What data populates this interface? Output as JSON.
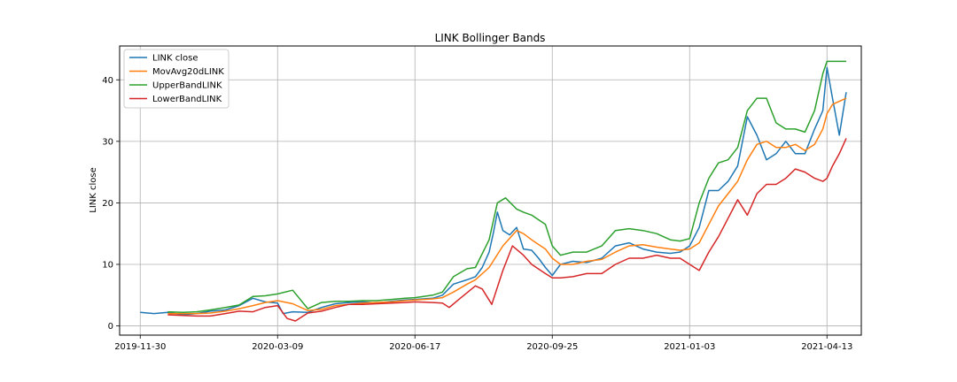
{
  "chart_data": {
    "type": "line",
    "title": "LINK Bollinger Bands",
    "xlabel": "",
    "ylabel": "LINK close",
    "ylim": [
      -1.5,
      45.5
    ],
    "yticks": [
      0,
      10,
      20,
      30,
      40
    ],
    "xticks": [
      "2019-11-30",
      "2020-03-09",
      "2020-06-17",
      "2020-09-25",
      "2021-01-03",
      "2021-04-13"
    ],
    "x_range": [
      "2019-11-15",
      "2021-05-08"
    ],
    "grid": true,
    "legend": "top-left",
    "series": [
      {
        "name": "LINK close",
        "color": "#1f77b4",
        "points": [
          [
            "2019-11-30",
            2.2
          ],
          [
            "2019-12-10",
            2.0
          ],
          [
            "2019-12-20",
            2.2
          ],
          [
            "2019-12-31",
            1.8
          ],
          [
            "2020-01-10",
            2.0
          ],
          [
            "2020-01-20",
            2.4
          ],
          [
            "2020-01-31",
            2.6
          ],
          [
            "2020-02-10",
            3.3
          ],
          [
            "2020-02-20",
            4.5
          ],
          [
            "2020-02-29",
            3.9
          ],
          [
            "2020-03-09",
            3.7
          ],
          [
            "2020-03-13",
            2.0
          ],
          [
            "2020-03-20",
            2.3
          ],
          [
            "2020-03-31",
            2.2
          ],
          [
            "2020-04-10",
            3.0
          ],
          [
            "2020-04-20",
            3.6
          ],
          [
            "2020-04-30",
            3.8
          ],
          [
            "2020-05-10",
            3.9
          ],
          [
            "2020-05-20",
            3.7
          ],
          [
            "2020-05-31",
            4.0
          ],
          [
            "2020-06-10",
            4.2
          ],
          [
            "2020-06-17",
            4.3
          ],
          [
            "2020-06-30",
            4.5
          ],
          [
            "2020-07-07",
            5.0
          ],
          [
            "2020-07-15",
            6.8
          ],
          [
            "2020-07-25",
            7.5
          ],
          [
            "2020-07-31",
            8.0
          ],
          [
            "2020-08-05",
            9.5
          ],
          [
            "2020-08-10",
            12.0
          ],
          [
            "2020-08-13",
            15.0
          ],
          [
            "2020-08-16",
            18.5
          ],
          [
            "2020-08-20",
            15.5
          ],
          [
            "2020-08-25",
            14.8
          ],
          [
            "2020-08-30",
            16.0
          ],
          [
            "2020-09-04",
            12.5
          ],
          [
            "2020-09-10",
            12.3
          ],
          [
            "2020-09-15",
            11.0
          ],
          [
            "2020-09-20",
            9.5
          ],
          [
            "2020-09-25",
            8.2
          ],
          [
            "2020-10-01",
            10.0
          ],
          [
            "2020-10-10",
            10.5
          ],
          [
            "2020-10-20",
            10.3
          ],
          [
            "2020-10-31",
            11.0
          ],
          [
            "2020-11-10",
            13.0
          ],
          [
            "2020-11-20",
            13.5
          ],
          [
            "2020-11-30",
            12.5
          ],
          [
            "2020-12-10",
            12.0
          ],
          [
            "2020-12-20",
            11.8
          ],
          [
            "2020-12-27",
            12.0
          ],
          [
            "2021-01-03",
            13.0
          ],
          [
            "2021-01-10",
            16.0
          ],
          [
            "2021-01-17",
            22.0
          ],
          [
            "2021-01-24",
            22.0
          ],
          [
            "2021-01-31",
            23.5
          ],
          [
            "2021-02-07",
            26.0
          ],
          [
            "2021-02-14",
            34.0
          ],
          [
            "2021-02-21",
            31.0
          ],
          [
            "2021-02-28",
            27.0
          ],
          [
            "2021-03-07",
            28.0
          ],
          [
            "2021-03-14",
            30.0
          ],
          [
            "2021-03-21",
            28.0
          ],
          [
            "2021-03-28",
            28.0
          ],
          [
            "2021-04-04",
            32.0
          ],
          [
            "2021-04-10",
            35.0
          ],
          [
            "2021-04-13",
            42.0
          ],
          [
            "2021-04-17",
            37.0
          ],
          [
            "2021-04-22",
            31.0
          ],
          [
            "2021-04-27",
            38.0
          ]
        ]
      },
      {
        "name": "MovAvg20dLINK",
        "color": "#ff7f0e",
        "points": [
          [
            "2019-12-20",
            2.0
          ],
          [
            "2019-12-31",
            2.0
          ],
          [
            "2020-01-10",
            2.0
          ],
          [
            "2020-01-20",
            2.1
          ],
          [
            "2020-01-31",
            2.4
          ],
          [
            "2020-02-10",
            2.8
          ],
          [
            "2020-02-20",
            3.3
          ],
          [
            "2020-02-29",
            3.8
          ],
          [
            "2020-03-09",
            4.1
          ],
          [
            "2020-03-20",
            3.6
          ],
          [
            "2020-03-31",
            2.5
          ],
          [
            "2020-04-10",
            2.7
          ],
          [
            "2020-04-20",
            3.3
          ],
          [
            "2020-04-30",
            3.5
          ],
          [
            "2020-05-10",
            3.7
          ],
          [
            "2020-05-20",
            3.8
          ],
          [
            "2020-05-31",
            3.9
          ],
          [
            "2020-06-10",
            4.1
          ],
          [
            "2020-06-17",
            4.2
          ],
          [
            "2020-06-30",
            4.4
          ],
          [
            "2020-07-07",
            4.6
          ],
          [
            "2020-07-15",
            5.5
          ],
          [
            "2020-07-25",
            6.8
          ],
          [
            "2020-07-31",
            7.5
          ],
          [
            "2020-08-10",
            9.5
          ],
          [
            "2020-08-20",
            13.0
          ],
          [
            "2020-08-30",
            15.5
          ],
          [
            "2020-09-04",
            15.0
          ],
          [
            "2020-09-10",
            14.0
          ],
          [
            "2020-09-20",
            12.5
          ],
          [
            "2020-09-25",
            11.0
          ],
          [
            "2020-10-01",
            10.0
          ],
          [
            "2020-10-10",
            10.0
          ],
          [
            "2020-10-20",
            10.5
          ],
          [
            "2020-10-31",
            10.8
          ],
          [
            "2020-11-10",
            12.0
          ],
          [
            "2020-11-20",
            13.0
          ],
          [
            "2020-11-30",
            13.2
          ],
          [
            "2020-12-10",
            12.8
          ],
          [
            "2020-12-20",
            12.5
          ],
          [
            "2020-12-27",
            12.3
          ],
          [
            "2021-01-03",
            12.5
          ],
          [
            "2021-01-10",
            13.5
          ],
          [
            "2021-01-17",
            16.5
          ],
          [
            "2021-01-24",
            19.5
          ],
          [
            "2021-01-31",
            21.5
          ],
          [
            "2021-02-07",
            23.5
          ],
          [
            "2021-02-14",
            27.0
          ],
          [
            "2021-02-21",
            29.5
          ],
          [
            "2021-02-28",
            30.0
          ],
          [
            "2021-03-07",
            29.0
          ],
          [
            "2021-03-14",
            29.0
          ],
          [
            "2021-03-21",
            29.5
          ],
          [
            "2021-03-28",
            28.5
          ],
          [
            "2021-04-04",
            29.5
          ],
          [
            "2021-04-10",
            32.0
          ],
          [
            "2021-04-13",
            34.5
          ],
          [
            "2021-04-17",
            36.0
          ],
          [
            "2021-04-22",
            36.5
          ],
          [
            "2021-04-27",
            37.0
          ]
        ]
      },
      {
        "name": "UpperBandLINK",
        "color": "#2ca02c",
        "points": [
          [
            "2019-12-20",
            2.3
          ],
          [
            "2019-12-31",
            2.2
          ],
          [
            "2020-01-10",
            2.3
          ],
          [
            "2020-01-20",
            2.6
          ],
          [
            "2020-01-31",
            3.0
          ],
          [
            "2020-02-10",
            3.4
          ],
          [
            "2020-02-20",
            4.8
          ],
          [
            "2020-02-29",
            4.9
          ],
          [
            "2020-03-09",
            5.2
          ],
          [
            "2020-03-20",
            5.8
          ],
          [
            "2020-03-31",
            2.8
          ],
          [
            "2020-04-10",
            3.8
          ],
          [
            "2020-04-20",
            4.0
          ],
          [
            "2020-04-30",
            4.0
          ],
          [
            "2020-05-10",
            4.1
          ],
          [
            "2020-05-20",
            4.1
          ],
          [
            "2020-05-31",
            4.3
          ],
          [
            "2020-06-10",
            4.5
          ],
          [
            "2020-06-17",
            4.6
          ],
          [
            "2020-06-30",
            5.0
          ],
          [
            "2020-07-07",
            5.5
          ],
          [
            "2020-07-15",
            8.0
          ],
          [
            "2020-07-25",
            9.3
          ],
          [
            "2020-07-31",
            9.5
          ],
          [
            "2020-08-10",
            14.0
          ],
          [
            "2020-08-16",
            20.0
          ],
          [
            "2020-08-22",
            20.8
          ],
          [
            "2020-08-30",
            19.0
          ],
          [
            "2020-09-04",
            18.5
          ],
          [
            "2020-09-10",
            18.0
          ],
          [
            "2020-09-20",
            16.5
          ],
          [
            "2020-09-25",
            13.0
          ],
          [
            "2020-10-01",
            11.5
          ],
          [
            "2020-10-10",
            12.0
          ],
          [
            "2020-10-20",
            12.0
          ],
          [
            "2020-10-31",
            13.0
          ],
          [
            "2020-11-10",
            15.5
          ],
          [
            "2020-11-20",
            15.8
          ],
          [
            "2020-11-30",
            15.5
          ],
          [
            "2020-12-10",
            15.0
          ],
          [
            "2020-12-20",
            14.0
          ],
          [
            "2020-12-27",
            13.8
          ],
          [
            "2021-01-03",
            14.2
          ],
          [
            "2021-01-10",
            20.0
          ],
          [
            "2021-01-17",
            24.0
          ],
          [
            "2021-01-24",
            26.5
          ],
          [
            "2021-01-31",
            27.0
          ],
          [
            "2021-02-07",
            29.0
          ],
          [
            "2021-02-14",
            35.0
          ],
          [
            "2021-02-21",
            37.0
          ],
          [
            "2021-02-28",
            37.0
          ],
          [
            "2021-03-07",
            33.0
          ],
          [
            "2021-03-14",
            32.0
          ],
          [
            "2021-03-21",
            32.0
          ],
          [
            "2021-03-28",
            31.5
          ],
          [
            "2021-04-04",
            35.0
          ],
          [
            "2021-04-10",
            41.0
          ],
          [
            "2021-04-13",
            43.0
          ],
          [
            "2021-04-17",
            43.0
          ],
          [
            "2021-04-27",
            43.0
          ]
        ]
      },
      {
        "name": "LowerBandLINK",
        "color": "#d62728",
        "points": [
          [
            "2019-12-20",
            1.8
          ],
          [
            "2019-12-31",
            1.7
          ],
          [
            "2020-01-10",
            1.6
          ],
          [
            "2020-01-20",
            1.6
          ],
          [
            "2020-01-31",
            2.0
          ],
          [
            "2020-02-10",
            2.4
          ],
          [
            "2020-02-20",
            2.3
          ],
          [
            "2020-02-29",
            3.0
          ],
          [
            "2020-03-09",
            3.3
          ],
          [
            "2020-03-16",
            1.2
          ],
          [
            "2020-03-22",
            0.8
          ],
          [
            "2020-03-31",
            2.1
          ],
          [
            "2020-04-10",
            2.4
          ],
          [
            "2020-04-20",
            3.0
          ],
          [
            "2020-04-30",
            3.5
          ],
          [
            "2020-05-10",
            3.5
          ],
          [
            "2020-05-20",
            3.6
          ],
          [
            "2020-05-31",
            3.7
          ],
          [
            "2020-06-10",
            3.8
          ],
          [
            "2020-06-17",
            3.9
          ],
          [
            "2020-06-30",
            3.8
          ],
          [
            "2020-07-07",
            3.7
          ],
          [
            "2020-07-12",
            3.0
          ],
          [
            "2020-07-20",
            4.5
          ],
          [
            "2020-07-31",
            6.5
          ],
          [
            "2020-08-05",
            6.0
          ],
          [
            "2020-08-12",
            3.5
          ],
          [
            "2020-08-20",
            9.0
          ],
          [
            "2020-08-27",
            13.0
          ],
          [
            "2020-09-04",
            11.5
          ],
          [
            "2020-09-10",
            10.0
          ],
          [
            "2020-09-20",
            8.5
          ],
          [
            "2020-09-25",
            7.8
          ],
          [
            "2020-10-01",
            7.8
          ],
          [
            "2020-10-10",
            8.0
          ],
          [
            "2020-10-20",
            8.5
          ],
          [
            "2020-10-31",
            8.5
          ],
          [
            "2020-11-10",
            10.0
          ],
          [
            "2020-11-20",
            11.0
          ],
          [
            "2020-11-30",
            11.0
          ],
          [
            "2020-12-10",
            11.5
          ],
          [
            "2020-12-20",
            11.0
          ],
          [
            "2020-12-27",
            11.0
          ],
          [
            "2021-01-03",
            10.0
          ],
          [
            "2021-01-10",
            9.0
          ],
          [
            "2021-01-17",
            12.0
          ],
          [
            "2021-01-24",
            14.5
          ],
          [
            "2021-01-31",
            17.5
          ],
          [
            "2021-02-07",
            20.5
          ],
          [
            "2021-02-14",
            18.0
          ],
          [
            "2021-02-21",
            21.5
          ],
          [
            "2021-02-28",
            23.0
          ],
          [
            "2021-03-07",
            23.0
          ],
          [
            "2021-03-14",
            24.0
          ],
          [
            "2021-03-21",
            25.5
          ],
          [
            "2021-03-28",
            25.0
          ],
          [
            "2021-04-04",
            24.0
          ],
          [
            "2021-04-10",
            23.5
          ],
          [
            "2021-04-13",
            24.0
          ],
          [
            "2021-04-17",
            26.0
          ],
          [
            "2021-04-22",
            28.0
          ],
          [
            "2021-04-27",
            30.5
          ]
        ]
      }
    ]
  }
}
